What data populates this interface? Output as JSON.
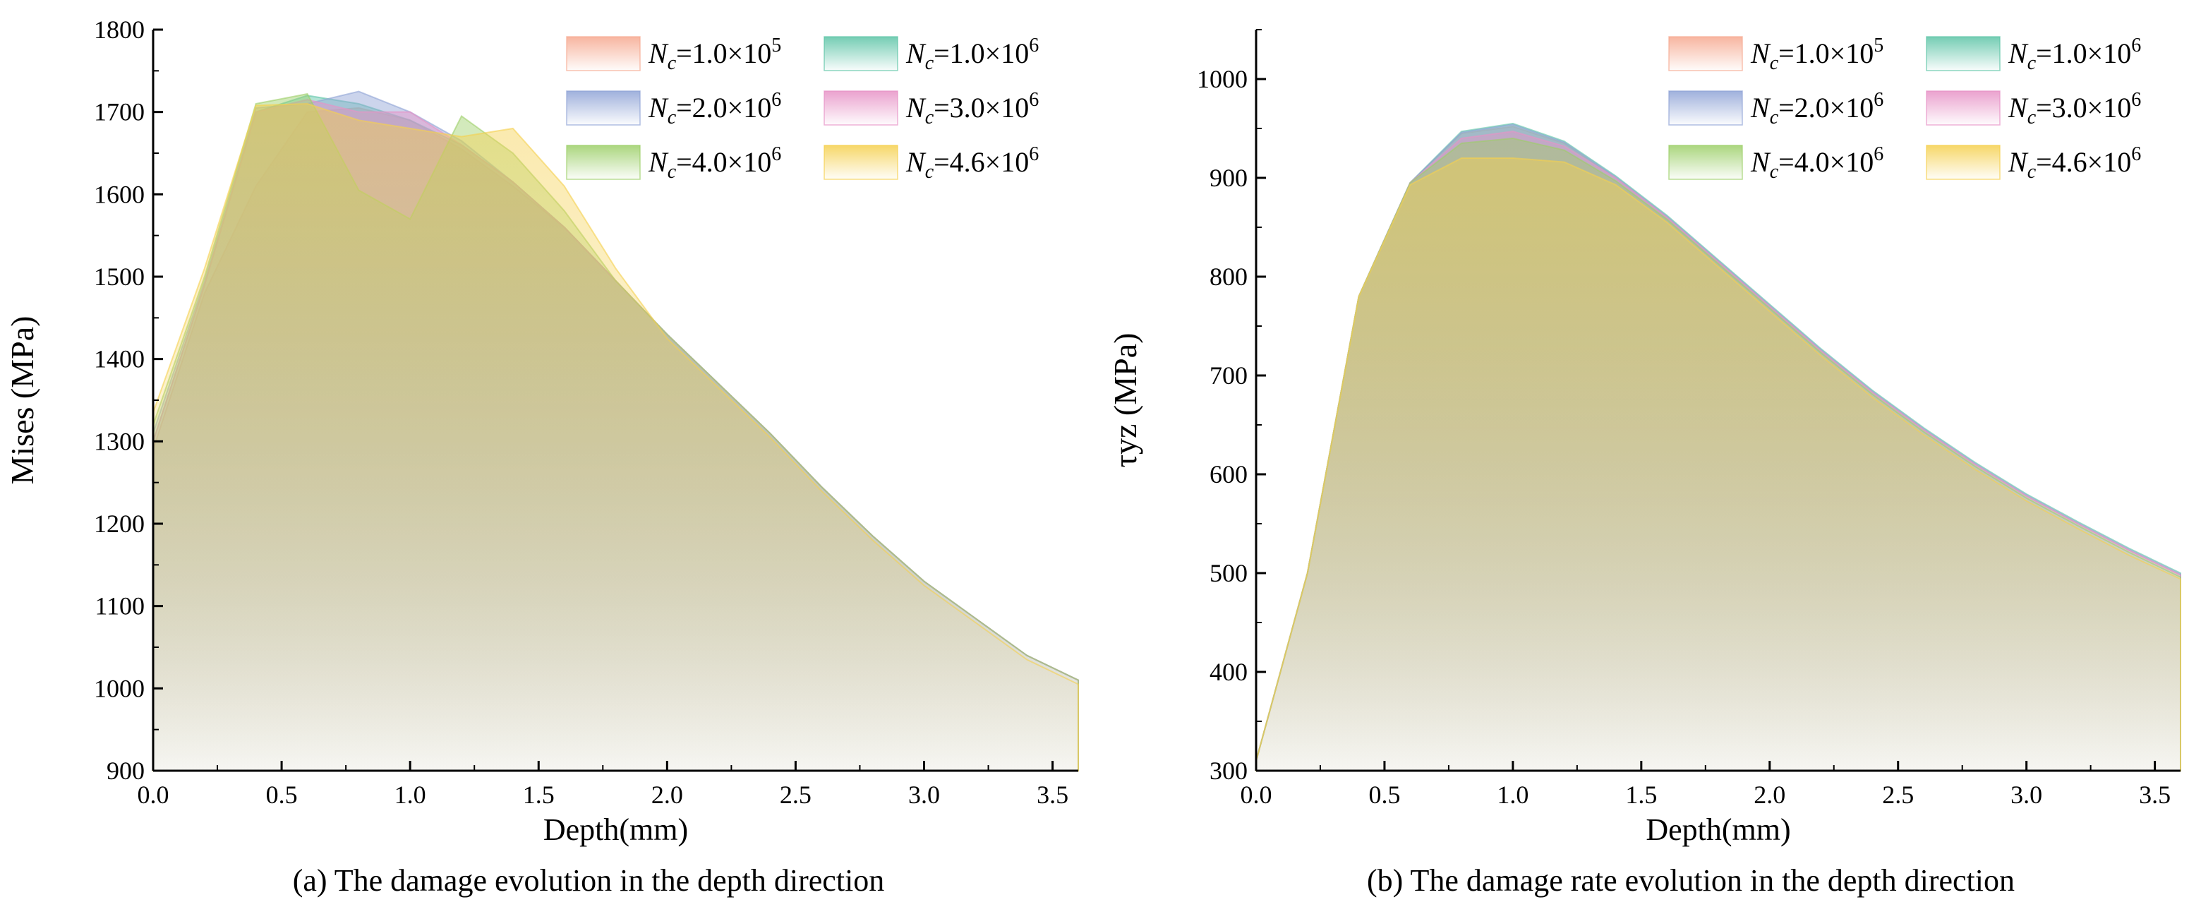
{
  "chart_data": [
    {
      "type": "area",
      "title": "",
      "caption": "(a) The damage evolution in the depth direction",
      "xlabel": "Depth(mm)",
      "ylabel": "Mises (MPa)",
      "xlim": [
        0,
        3.6
      ],
      "ylim": [
        900,
        1800
      ],
      "xticks": [
        0.0,
        0.5,
        1.0,
        1.5,
        2.0,
        2.5,
        3.0,
        3.5
      ],
      "xtick_labels": [
        "0.0",
        "0.5",
        "1.0",
        "1.5",
        "2.0",
        "2.5",
        "3.0",
        "3.5"
      ],
      "yticks": [
        900,
        1000,
        1100,
        1200,
        1300,
        1400,
        1500,
        1600,
        1700,
        1800
      ],
      "ytick_labels": [
        "900",
        "1000",
        "1100",
        "1200",
        "1300",
        "1400",
        "1500",
        "1600",
        "1700",
        "1800"
      ],
      "legend_position": "top-right",
      "x": [
        0,
        0.2,
        0.4,
        0.6,
        0.8,
        1.0,
        1.2,
        1.4,
        1.6,
        1.8,
        2.0,
        2.2,
        2.4,
        2.6,
        2.8,
        3.0,
        3.2,
        3.4,
        3.6
      ],
      "series": [
        {
          "name": "Nc=1.0×10^5",
          "base": "1.0",
          "exp": "5",
          "color": "#f6a88f",
          "values": [
            1290,
            1480,
            1610,
            1700,
            1705,
            1690,
            1655,
            1610,
            1560,
            1495,
            1430,
            1370,
            1310,
            1245,
            1185,
            1130,
            1085,
            1040,
            1010
          ]
        },
        {
          "name": "Nc=1.0×10^6",
          "base": "1.0",
          "exp": "6",
          "color": "#5cc4a6",
          "values": [
            1300,
            1490,
            1700,
            1720,
            1710,
            1690,
            1660,
            1615,
            1560,
            1495,
            1430,
            1370,
            1310,
            1245,
            1185,
            1130,
            1085,
            1040,
            1010
          ]
        },
        {
          "name": "Nc=2.0×10^6",
          "base": "2.0",
          "exp": "6",
          "color": "#8fa3d6",
          "values": [
            1310,
            1495,
            1705,
            1710,
            1725,
            1700,
            1665,
            1615,
            1560,
            1495,
            1430,
            1370,
            1310,
            1245,
            1185,
            1130,
            1085,
            1040,
            1010
          ]
        },
        {
          "name": "Nc=3.0×10^6",
          "base": "3.0",
          "exp": "6",
          "color": "#e792c6",
          "values": [
            1300,
            1490,
            1700,
            1715,
            1700,
            1700,
            1660,
            1615,
            1560,
            1495,
            1430,
            1370,
            1310,
            1245,
            1185,
            1130,
            1085,
            1040,
            1010
          ]
        },
        {
          "name": "Nc=4.0×10^6",
          "base": "4.0",
          "exp": "6",
          "color": "#9ccf68",
          "values": [
            1320,
            1500,
            1710,
            1722,
            1605,
            1570,
            1695,
            1650,
            1580,
            1495,
            1430,
            1370,
            1310,
            1245,
            1185,
            1130,
            1085,
            1040,
            1010
          ]
        },
        {
          "name": "Nc=4.6×10^6",
          "base": "4.6",
          "exp": "6",
          "color": "#f5d04e",
          "values": [
            1335,
            1510,
            1708,
            1710,
            1690,
            1680,
            1670,
            1680,
            1610,
            1510,
            1425,
            1365,
            1305,
            1240,
            1180,
            1125,
            1080,
            1035,
            1005
          ]
        }
      ]
    },
    {
      "type": "area",
      "title": "",
      "caption": "(b) The damage rate evolution in the depth direction",
      "xlabel": "Depth(mm)",
      "ylabel": "τyz (MPa)",
      "xlim": [
        0,
        3.6
      ],
      "ylim": [
        300,
        1050
      ],
      "xticks": [
        0.0,
        0.5,
        1.0,
        1.5,
        2.0,
        2.5,
        3.0,
        3.5
      ],
      "xtick_labels": [
        "0.0",
        "0.5",
        "1.0",
        "1.5",
        "2.0",
        "2.5",
        "3.0",
        "3.5"
      ],
      "yticks": [
        300,
        400,
        500,
        600,
        700,
        800,
        900,
        1000
      ],
      "ytick_labels": [
        "300",
        "400",
        "500",
        "600",
        "700",
        "800",
        "900",
        "1000"
      ],
      "legend_position": "top-right",
      "x": [
        0,
        0.2,
        0.4,
        0.6,
        0.8,
        1.0,
        1.2,
        1.4,
        1.6,
        1.8,
        2.0,
        2.2,
        2.4,
        2.6,
        2.8,
        3.0,
        3.2,
        3.4,
        3.6
      ],
      "series": [
        {
          "name": "Nc=1.0×10^5",
          "base": "1.0",
          "exp": "5",
          "color": "#f6a88f",
          "values": [
            310,
            500,
            780,
            895,
            945,
            952,
            935,
            900,
            860,
            815,
            770,
            725,
            683,
            645,
            610,
            578,
            550,
            523,
            498
          ]
        },
        {
          "name": "Nc=1.0×10^6",
          "base": "1.0",
          "exp": "6",
          "color": "#5cc4a6",
          "values": [
            310,
            500,
            780,
            895,
            947,
            955,
            937,
            902,
            862,
            817,
            772,
            727,
            685,
            647,
            612,
            580,
            552,
            525,
            500
          ]
        },
        {
          "name": "Nc=2.0×10^6",
          "base": "2.0",
          "exp": "6",
          "color": "#8fa3d6",
          "values": [
            310,
            500,
            780,
            895,
            946,
            954,
            936,
            901,
            861,
            816,
            771,
            726,
            684,
            646,
            611,
            579,
            551,
            524,
            499
          ]
        },
        {
          "name": "Nc=3.0×10^6",
          "base": "3.0",
          "exp": "6",
          "color": "#e792c6",
          "values": [
            310,
            500,
            780,
            895,
            940,
            947,
            932,
            900,
            860,
            815,
            770,
            725,
            683,
            645,
            610,
            578,
            550,
            523,
            498
          ]
        },
        {
          "name": "Nc=4.0×10^6",
          "base": "4.0",
          "exp": "6",
          "color": "#9ccf68",
          "values": [
            310,
            500,
            780,
            895,
            935,
            940,
            928,
            897,
            858,
            813,
            768,
            723,
            681,
            643,
            608,
            576,
            548,
            521,
            496
          ]
        },
        {
          "name": "Nc=4.6×10^6",
          "base": "4.6",
          "exp": "6",
          "color": "#f5d04e",
          "values": [
            310,
            500,
            780,
            893,
            920,
            920,
            916,
            893,
            855,
            810,
            765,
            720,
            678,
            640,
            605,
            573,
            545,
            518,
            494
          ]
        }
      ]
    }
  ]
}
